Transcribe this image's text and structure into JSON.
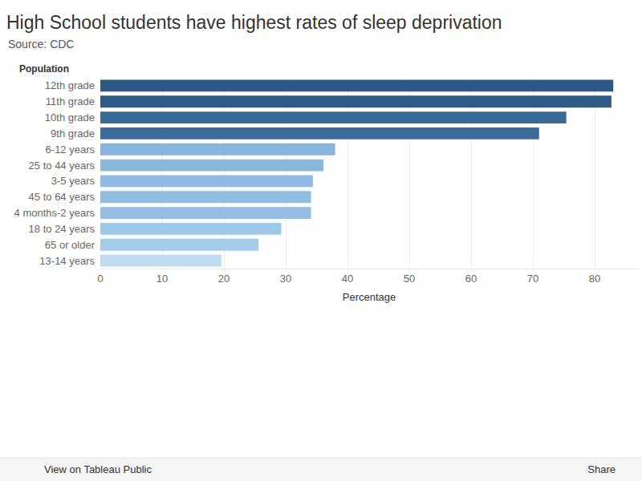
{
  "chart_data": {
    "type": "bar",
    "orientation": "horizontal",
    "title": "High School students have highest rates of sleep deprivation",
    "subtitle": "Source: CDC",
    "xlabel": "Percentage",
    "ylabel": "Population",
    "categories": [
      "12th grade",
      "11th grade",
      "10th grade",
      "9th grade",
      "6-12 years",
      "25 to 44 years",
      "3-5 years",
      "45 to 64 years",
      "4 months-2 years",
      "18 to 24 years",
      "65 or older",
      "13-14 years"
    ],
    "values": [
      83.0,
      82.7,
      75.4,
      71.0,
      38.0,
      36.1,
      34.4,
      34.1,
      34.1,
      29.3,
      25.6,
      19.6
    ],
    "colors": [
      "#2d5986",
      "#2e5a87",
      "#3a6a98",
      "#3b6c9a",
      "#88b5dd",
      "#8ab7dc",
      "#8fbbe0",
      "#92bde0",
      "#93bee1",
      "#9ec8e8",
      "#a4cbe8",
      "#bddcf3"
    ],
    "xlim": [
      0,
      87
    ],
    "xticks": [
      0,
      10,
      20,
      30,
      40,
      50,
      60,
      70,
      80
    ],
    "grid": true,
    "footer": {
      "left": "View on Tableau Public",
      "right": "Share"
    }
  }
}
